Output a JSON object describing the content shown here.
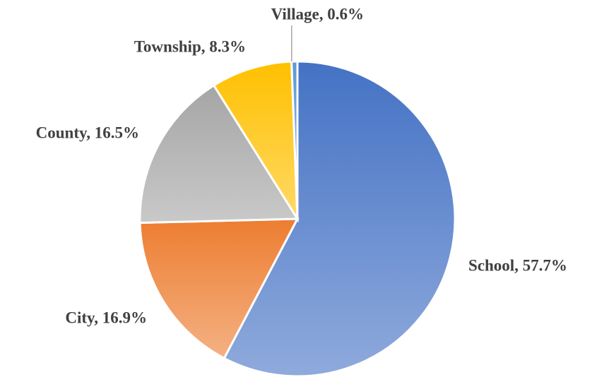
{
  "chart_data": {
    "type": "pie",
    "values": [
      57.7,
      16.9,
      16.5,
      8.3,
      0.6
    ],
    "value_labels": [
      "School, 57.7%",
      "City, 16.9%",
      "County, 16.5%",
      "Township, 8.3%",
      "Village,  0.6%"
    ],
    "colors": [
      "#4472c4",
      "#ed7d31",
      "#a5a5a5",
      "#ffc000",
      "#5b9bd5"
    ]
  }
}
